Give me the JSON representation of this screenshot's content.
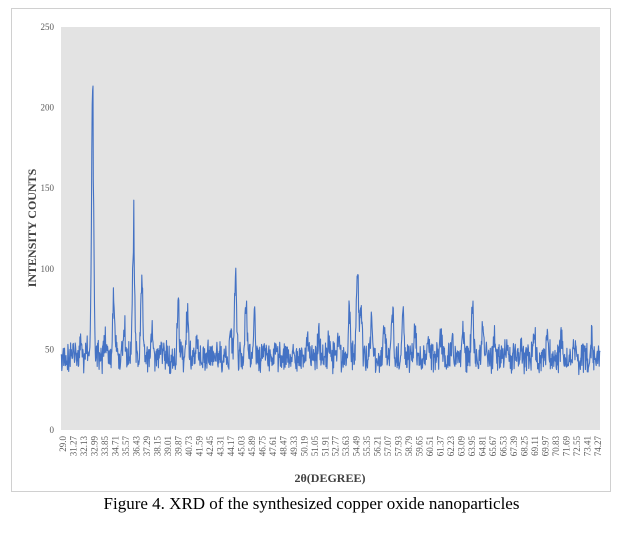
{
  "caption": "Figure 4. XRD of the synthesized copper oxide nanoparticles",
  "chart_data": {
    "type": "line",
    "title": "",
    "xlabel": "2θ(DEGREE)",
    "ylabel": "INTENSITY COUNTS",
    "xlim": [
      29.0,
      75.0
    ],
    "ylim": [
      0,
      250
    ],
    "yticks": [
      0,
      50,
      100,
      150,
      200,
      250
    ],
    "xtick_labels": [
      "29.0",
      "31.27",
      "32.13",
      "32.99",
      "33.85",
      "34.71",
      "35.57",
      "36.43",
      "37.29",
      "38.15",
      "39.01",
      "39.87",
      "40.73",
      "41.59",
      "42.45",
      "43.31",
      "44.17",
      "45.03",
      "45.89",
      "46.75",
      "47.61",
      "48.47",
      "49.33",
      "50.19",
      "51.05",
      "51.91",
      "52.77",
      "53.63",
      "54.49",
      "55.35",
      "56.21",
      "57.07",
      "57.93",
      "58.79",
      "59.65",
      "60.51",
      "61.37",
      "62.23",
      "63.09",
      "63.95",
      "64.81",
      "65.67",
      "66.53",
      "67.39",
      "68.25",
      "69.11",
      "69.97",
      "70.83",
      "71.69",
      "72.55",
      "73.41",
      "74.27"
    ],
    "grid": false,
    "plot_background": "#e3e3e3",
    "series_color": "#4472c4",
    "baseline": 45,
    "noise_amplitude": 8,
    "peaks": [
      {
        "x": 30.3,
        "y": 48
      },
      {
        "x": 30.7,
        "y": 55
      },
      {
        "x": 31.2,
        "y": 52
      },
      {
        "x": 31.7,
        "y": 210
      },
      {
        "x": 32.1,
        "y": 50
      },
      {
        "x": 32.8,
        "y": 55
      },
      {
        "x": 33.5,
        "y": 80
      },
      {
        "x": 34.4,
        "y": 65
      },
      {
        "x": 35.2,
        "y": 128
      },
      {
        "x": 35.9,
        "y": 93
      },
      {
        "x": 36.8,
        "y": 62
      },
      {
        "x": 37.6,
        "y": 50
      },
      {
        "x": 39.0,
        "y": 75
      },
      {
        "x": 39.8,
        "y": 73
      },
      {
        "x": 40.6,
        "y": 60
      },
      {
        "x": 41.5,
        "y": 48
      },
      {
        "x": 42.4,
        "y": 48
      },
      {
        "x": 43.5,
        "y": 60
      },
      {
        "x": 43.9,
        "y": 96
      },
      {
        "x": 44.8,
        "y": 80
      },
      {
        "x": 45.5,
        "y": 70
      },
      {
        "x": 46.4,
        "y": 55
      },
      {
        "x": 47.3,
        "y": 52
      },
      {
        "x": 48.5,
        "y": 45
      },
      {
        "x": 50.0,
        "y": 60
      },
      {
        "x": 51.0,
        "y": 58
      },
      {
        "x": 51.9,
        "y": 56
      },
      {
        "x": 52.7,
        "y": 62
      },
      {
        "x": 53.6,
        "y": 72
      },
      {
        "x": 54.3,
        "y": 102
      },
      {
        "x": 54.6,
        "y": 78
      },
      {
        "x": 55.5,
        "y": 68
      },
      {
        "x": 56.6,
        "y": 66
      },
      {
        "x": 57.3,
        "y": 74
      },
      {
        "x": 58.2,
        "y": 70
      },
      {
        "x": 59.2,
        "y": 62
      },
      {
        "x": 60.3,
        "y": 55
      },
      {
        "x": 61.4,
        "y": 58
      },
      {
        "x": 62.4,
        "y": 56
      },
      {
        "x": 63.3,
        "y": 62
      },
      {
        "x": 64.1,
        "y": 77
      },
      {
        "x": 65.0,
        "y": 63
      },
      {
        "x": 66.0,
        "y": 58
      },
      {
        "x": 67.0,
        "y": 52
      },
      {
        "x": 68.2,
        "y": 50
      },
      {
        "x": 69.4,
        "y": 62
      },
      {
        "x": 70.5,
        "y": 56
      },
      {
        "x": 71.7,
        "y": 55
      },
      {
        "x": 72.8,
        "y": 54
      },
      {
        "x": 74.3,
        "y": 57
      }
    ]
  }
}
